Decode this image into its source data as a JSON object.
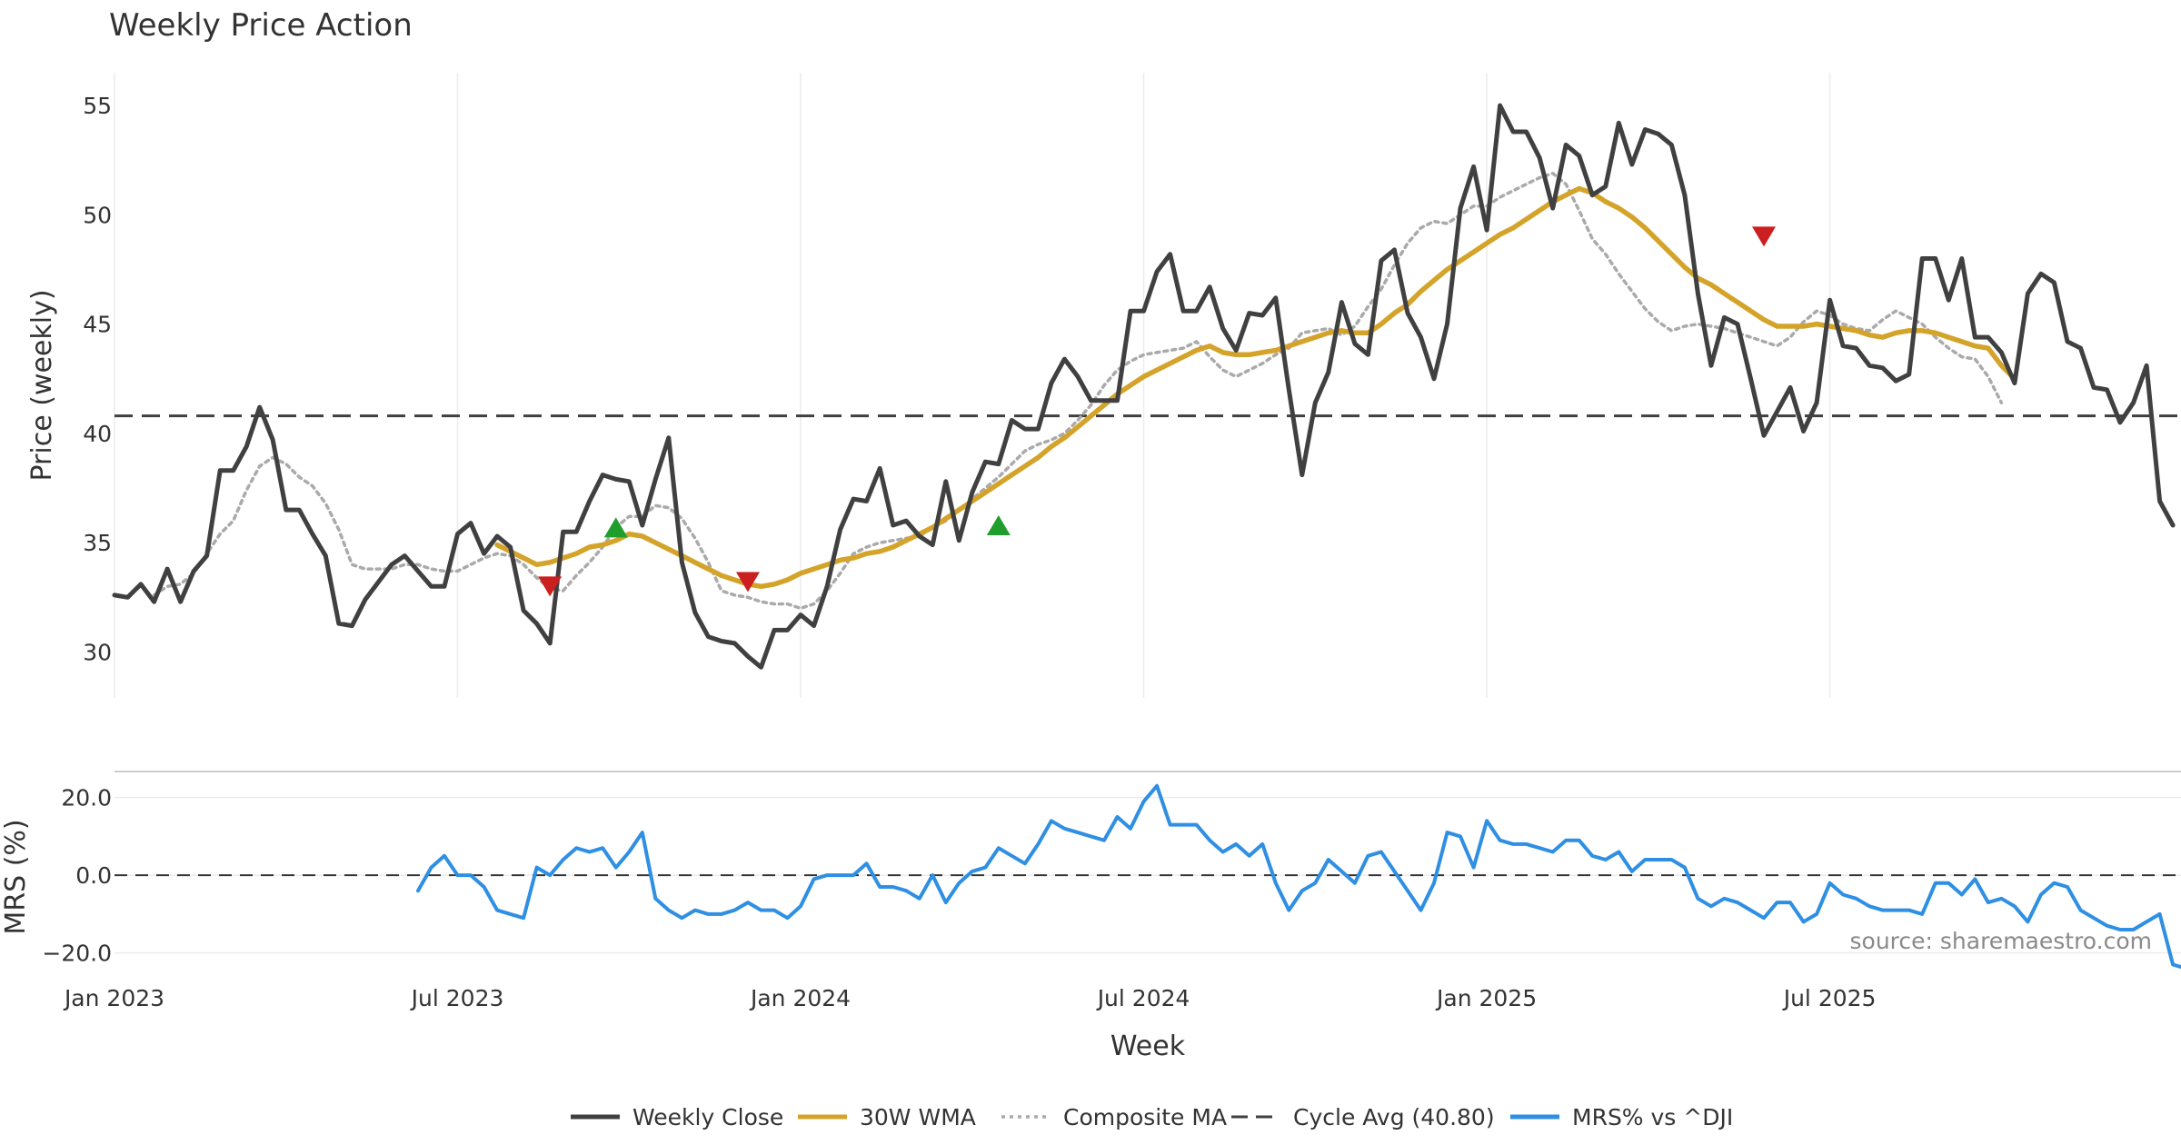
{
  "chart_data": {
    "type": "line",
    "title": "Weekly Price Action",
    "xlabel": "Week",
    "x_ticks": [
      "Jan 2023",
      "Jul 2023",
      "Jan 2024",
      "Jul 2024",
      "Jan 2025",
      "Jul 2025"
    ],
    "price_panel": {
      "ylabel": "Price (weekly)",
      "ylim": [
        27.9,
        56.5
      ],
      "yticks": [
        "30",
        "35",
        "40",
        "45",
        "50",
        "55"
      ],
      "cycle_avg": 40.8
    },
    "mrs_panel": {
      "ylabel": "MRS (%)",
      "ylim": [
        -25.0,
        26.0
      ],
      "yticks": [
        "20.0",
        "0.0",
        "−20.0"
      ],
      "zero_line": 0
    },
    "series": [
      {
        "name": "Weekly Close",
        "color": "#404040",
        "start_week": 0,
        "values": [
          32.6,
          32.5,
          33.1,
          32.3,
          33.8,
          32.3,
          33.7,
          34.4,
          38.3,
          38.3,
          39.4,
          41.2,
          39.7,
          36.5,
          36.5,
          35.4,
          34.4,
          31.3,
          31.2,
          32.4,
          33.2,
          34.0,
          34.4,
          33.7,
          33.0,
          33.0,
          35.4,
          35.9,
          34.5,
          35.3,
          34.8,
          31.9,
          31.3,
          30.4,
          35.5,
          35.5,
          36.9,
          38.1,
          37.9,
          37.8,
          35.8,
          37.9,
          39.8,
          34.1,
          31.8,
          30.7,
          30.5,
          30.4,
          29.8,
          29.3,
          31.0,
          31.0,
          31.7,
          31.2,
          33.0,
          35.6,
          37.0,
          36.9,
          38.4,
          35.8,
          36.0,
          35.3,
          34.9,
          37.8,
          35.1,
          37.3,
          38.7,
          38.6,
          40.6,
          40.2,
          40.2,
          42.3,
          43.4,
          42.6,
          41.5,
          41.5,
          41.5,
          45.6,
          45.6,
          47.4,
          48.2,
          45.6,
          45.6,
          46.7,
          44.8,
          43.8,
          45.5,
          45.4,
          46.2,
          42.0,
          38.1,
          41.4,
          42.8,
          46.0,
          44.1,
          43.6,
          47.9,
          48.4,
          45.5,
          44.4,
          42.5,
          45.0,
          50.3,
          52.2,
          49.3,
          55.0,
          53.8,
          53.8,
          52.6,
          50.3,
          53.2,
          52.7,
          50.9,
          51.3,
          54.2,
          52.3,
          53.9,
          53.7,
          53.2,
          50.9,
          46.4,
          43.1,
          45.3,
          45.0,
          42.5,
          39.9,
          41.0,
          42.1,
          40.1,
          41.4,
          46.1,
          44.0,
          43.9,
          43.1,
          43.0,
          42.4,
          42.7,
          48.0,
          48.0,
          46.1,
          48.0,
          44.4,
          44.4,
          43.7,
          42.3,
          46.4,
          47.3,
          46.9,
          44.2,
          43.9,
          42.1,
          42.0,
          40.5,
          41.4,
          43.1,
          36.9,
          35.8
        ]
      },
      {
        "name": "30W WMA",
        "color": "#d4a32a",
        "start_week": 29,
        "values": [
          34.9,
          34.6,
          34.3,
          34.0,
          34.1,
          34.3,
          34.5,
          34.8,
          34.9,
          35.1,
          35.4,
          35.3,
          35.0,
          34.7,
          34.4,
          34.1,
          33.8,
          33.5,
          33.3,
          33.1,
          33.0,
          33.1,
          33.3,
          33.6,
          33.8,
          34.0,
          34.2,
          34.3,
          34.5,
          34.6,
          34.8,
          35.1,
          35.4,
          35.7,
          36.1,
          36.5,
          36.9,
          37.3,
          37.7,
          38.1,
          38.5,
          38.9,
          39.4,
          39.8,
          40.3,
          40.8,
          41.3,
          41.8,
          42.2,
          42.6,
          42.9,
          43.2,
          43.5,
          43.8,
          44.0,
          43.7,
          43.6,
          43.6,
          43.7,
          43.8,
          44.0,
          44.2,
          44.4,
          44.6,
          44.7,
          44.6,
          44.6,
          45.0,
          45.5,
          45.9,
          46.5,
          47.0,
          47.5,
          47.9,
          48.3,
          48.7,
          49.1,
          49.4,
          49.8,
          50.2,
          50.6,
          50.9,
          51.2,
          51.0,
          50.6,
          50.3,
          49.9,
          49.4,
          48.8,
          48.2,
          47.6,
          47.1,
          46.8,
          46.4,
          46.0,
          45.6,
          45.2,
          44.9,
          44.9,
          44.9,
          45.0,
          44.9,
          44.8,
          44.7,
          44.5,
          44.4,
          44.6,
          44.7,
          44.7,
          44.6,
          44.4,
          44.2,
          44.0,
          43.9,
          43.1,
          42.5
        ]
      },
      {
        "name": "Composite MA",
        "color": "#aaaaaa",
        "start_week": 3,
        "values": [
          32.6,
          33.0,
          33.1,
          33.6,
          34.5,
          35.4,
          36.0,
          37.4,
          38.5,
          38.9,
          38.6,
          38.0,
          37.6,
          36.8,
          35.6,
          34.0,
          33.8,
          33.8,
          33.8,
          34.0,
          34.0,
          33.8,
          33.7,
          33.7,
          34.0,
          34.3,
          34.5,
          34.4,
          34.0,
          33.4,
          32.9,
          32.8,
          33.5,
          34.1,
          34.8,
          35.7,
          36.2,
          36.2,
          36.7,
          36.6,
          36.1,
          35.2,
          34.1,
          32.8,
          32.6,
          32.5,
          32.3,
          32.2,
          32.2,
          32.0,
          32.2,
          32.8,
          33.6,
          34.5,
          34.8,
          35.0,
          35.1,
          35.2,
          35.3,
          35.7,
          36.0,
          36.5,
          37.0,
          37.5,
          38.0,
          38.6,
          39.2,
          39.5,
          39.7,
          40.0,
          40.6,
          41.3,
          42.2,
          42.9,
          43.3,
          43.6,
          43.7,
          43.8,
          43.9,
          44.2,
          43.5,
          42.9,
          42.6,
          42.9,
          43.2,
          43.6,
          43.9,
          44.6,
          44.7,
          44.8,
          44.5,
          44.9,
          45.8,
          46.6,
          47.7,
          48.7,
          49.4,
          49.7,
          49.6,
          50.0,
          50.4,
          50.4,
          50.8,
          51.1,
          51.4,
          51.7,
          51.9,
          51.4,
          50.2,
          48.9,
          48.2,
          47.3,
          46.5,
          45.7,
          45.1,
          44.7,
          44.9,
          45.0,
          44.9,
          44.8,
          44.6,
          44.4,
          44.2,
          44.0,
          44.4,
          45.1,
          45.6,
          45.4,
          45.0,
          44.8,
          44.7,
          45.2,
          45.6,
          45.3,
          45.0,
          44.4,
          43.9,
          43.5,
          43.4,
          42.6,
          41.4
        ]
      },
      {
        "name": "MRS% vs ^DJI",
        "color": "#2e8fe3",
        "start_week": 23,
        "values": [
          -4.0,
          2.0,
          5.0,
          0.0,
          0.0,
          -3.0,
          -9.0,
          -10.0,
          -11.0,
          2.0,
          0.0,
          4.0,
          7.0,
          6.0,
          7.0,
          2.0,
          6.0,
          11.0,
          -6.0,
          -9.0,
          -11.0,
          -9.0,
          -10.0,
          -10.0,
          -9.0,
          -7.0,
          -9.0,
          -9.0,
          -11.0,
          -8.0,
          -1.0,
          0.0,
          0.0,
          0.0,
          3.0,
          -3.0,
          -3.0,
          -4.0,
          -6.0,
          0.0,
          -7.0,
          -2.0,
          1.0,
          2.0,
          7.0,
          5.0,
          3.0,
          8.0,
          14.0,
          12.0,
          11.0,
          10.0,
          9.0,
          15.0,
          12.0,
          19.0,
          23.0,
          13.0,
          13.0,
          13.0,
          9.0,
          6.0,
          8.0,
          5.0,
          8.0,
          -2.0,
          -9.0,
          -4.0,
          -2.0,
          4.0,
          1.0,
          -2.0,
          5.0,
          6.0,
          1.0,
          -4.0,
          -9.0,
          -2.0,
          11.0,
          10.0,
          2.0,
          14.0,
          9.0,
          8.0,
          8.0,
          7.0,
          6.0,
          9.0,
          9.0,
          5.0,
          4.0,
          6.0,
          1.0,
          4.0,
          4.0,
          4.0,
          2.0,
          -6.0,
          -8.0,
          -6.0,
          -7.0,
          -9.0,
          -11.0,
          -7.0,
          -7.0,
          -12.0,
          -10.0,
          -2.0,
          -5.0,
          -6.0,
          -8.0,
          -9.0,
          -9.0,
          -9.0,
          -10.0,
          -2.0,
          -2.0,
          -5.0,
          -1.0,
          -7.0,
          -6.0,
          -8.0,
          -12.0,
          -5.0,
          -2.0,
          -3.0,
          -9.0,
          -11.0,
          -13.0,
          -14.0,
          -14.0,
          -12.0,
          -10.0,
          -23.0,
          -24.0
        ]
      }
    ],
    "reference_lines": [
      {
        "name": "Cycle Avg (40.80)",
        "value": 40.8,
        "color": "#404040",
        "style": "dashed"
      }
    ],
    "markers": [
      {
        "type": "sell",
        "week": 33,
        "value": 33.0,
        "color": "#cc1f1f"
      },
      {
        "type": "buy",
        "week": 38,
        "value": 35.7,
        "color": "#1f9e2c"
      },
      {
        "type": "sell",
        "week": 48,
        "value": 33.2,
        "color": "#cc1f1f"
      },
      {
        "type": "buy",
        "week": 67,
        "value": 35.8,
        "color": "#1f9e2c"
      },
      {
        "type": "sell",
        "week": 125,
        "value": 49.0,
        "color": "#cc1f1f"
      }
    ],
    "legend": {
      "position": "bottom-center",
      "items": [
        {
          "label": "Weekly Close",
          "color": "#404040",
          "style": "solid"
        },
        {
          "label": "30W WMA",
          "color": "#d4a32a",
          "style": "solid"
        },
        {
          "label": "Composite MA",
          "color": "#aaaaaa",
          "style": "dotted"
        },
        {
          "label": "Cycle Avg (40.80)",
          "color": "#404040",
          "style": "dashed"
        },
        {
          "label": "MRS% vs ^DJI",
          "color": "#2e8fe3",
          "style": "solid"
        }
      ]
    },
    "source_note": "source: sharemaestro.com"
  }
}
